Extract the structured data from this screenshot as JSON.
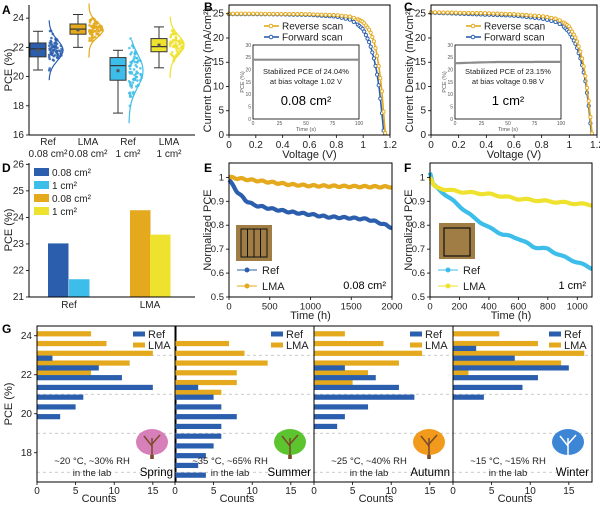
{
  "colors": {
    "ref_small": "#2b5fae",
    "ref_large": "#3dbde9",
    "lma_small": "#e4a91c",
    "lma_large": "#efe22e",
    "inset_line": "#8c8c8c"
  },
  "chart_data": [
    {
      "label": "A",
      "type": "box",
      "ylabel": "PCE (%)",
      "ylim": [
        16,
        24.9
      ],
      "yticks": [
        16,
        18,
        20,
        22,
        24
      ],
      "categories": [
        {
          "line1": "Ref",
          "line2": "0.08 cm²",
          "color": "#2b5fae",
          "min": 20.45,
          "q1": 21.35,
          "median": 21.9,
          "q3": 22.3,
          "max": 23.1,
          "mean": 21.8
        },
        {
          "line1": "LMA",
          "line2": "0.08 cm²",
          "color": "#e4a91c",
          "min": 22.0,
          "q1": 22.9,
          "median": 23.25,
          "q3": 23.6,
          "max": 24.25,
          "mean": 23.2
        },
        {
          "line1": "Ref",
          "line2": "1 cm²",
          "color": "#3dbde9",
          "min": 17.5,
          "q1": 19.75,
          "median": 20.75,
          "q3": 21.3,
          "max": 21.8,
          "mean": 20.4
        },
        {
          "line1": "LMA",
          "line2": "1 cm²",
          "color": "#efe22e",
          "min": 20.6,
          "q1": 21.7,
          "median": 22.05,
          "q3": 22.6,
          "max": 23.4,
          "mean": 22.15
        }
      ]
    },
    {
      "label": "B",
      "type": "line",
      "xlabel": "Voltage (V)",
      "ylabel": "Current Density (mA/cm²)",
      "xlim": [
        0,
        1.2
      ],
      "ylim": [
        0,
        26.8
      ],
      "xticks": [
        0,
        0.2,
        0.4,
        0.6,
        0.8,
        1,
        1.2
      ],
      "yticks": [
        0,
        5,
        10,
        15,
        20,
        25
      ],
      "series": [
        {
          "name": "Reverse scan",
          "color": "#e4a91c",
          "points": [
            [
              0,
              25.0
            ],
            [
              0.2,
              25.0
            ],
            [
              0.4,
              24.95
            ],
            [
              0.6,
              24.9
            ],
            [
              0.8,
              24.7
            ],
            [
              0.9,
              24.4
            ],
            [
              0.95,
              24.0
            ],
            [
              1.0,
              23.3
            ],
            [
              1.05,
              21.5
            ],
            [
              1.08,
              19.3
            ],
            [
              1.1,
              17.0
            ],
            [
              1.12,
              13.5
            ],
            [
              1.14,
              9
            ],
            [
              1.16,
              2
            ],
            [
              1.165,
              0
            ]
          ]
        },
        {
          "name": "Forward scan",
          "color": "#2b5fae",
          "points": [
            [
              0,
              24.9
            ],
            [
              0.2,
              24.9
            ],
            [
              0.4,
              24.85
            ],
            [
              0.6,
              24.75
            ],
            [
              0.8,
              24.4
            ],
            [
              0.9,
              23.8
            ],
            [
              0.95,
              23.0
            ],
            [
              1.0,
              21.8
            ],
            [
              1.05,
              18.8
            ],
            [
              1.08,
              15.8
            ],
            [
              1.1,
              13.2
            ],
            [
              1.12,
              9.5
            ],
            [
              1.14,
              4.5
            ],
            [
              1.15,
              1.5
            ],
            [
              1.155,
              0
            ]
          ]
        }
      ],
      "inset": {
        "xlabel": "Time (s)",
        "ylabel": "PCE (%)",
        "xlim": [
          0,
          100
        ],
        "ylim": [
          0,
          30
        ],
        "xticks": [
          0,
          25,
          50,
          75,
          100
        ],
        "yticks": [
          0,
          5,
          10,
          15,
          20,
          25,
          30
        ],
        "points": [
          [
            0,
            24.04
          ],
          [
            100,
            24.04
          ]
        ],
        "annotation": "Stabilized PCE of 24.04%",
        "annotation2": "at bias voltage 1.02 V",
        "area_label": "0.08 cm²"
      }
    },
    {
      "label": "C",
      "type": "line",
      "xlabel": "Voltage (V)",
      "ylabel": "Current Density (mA/cm²)",
      "xlim": [
        0,
        1.2
      ],
      "ylim": [
        0,
        26.8
      ],
      "xticks": [
        0,
        0.2,
        0.4,
        0.6,
        0.8,
        1,
        1.2
      ],
      "yticks": [
        0,
        5,
        10,
        15,
        20,
        25
      ],
      "series": [
        {
          "name": "Reverse scan",
          "color": "#e4a91c",
          "points": [
            [
              0,
              25.3
            ],
            [
              0.2,
              25.2
            ],
            [
              0.4,
              25.1
            ],
            [
              0.6,
              24.9
            ],
            [
              0.8,
              24.5
            ],
            [
              0.9,
              24.0
            ],
            [
              0.95,
              23.4
            ],
            [
              1.0,
              22.3
            ],
            [
              1.05,
              19.8
            ],
            [
              1.08,
              17.2
            ],
            [
              1.1,
              14.8
            ],
            [
              1.12,
              11.5
            ],
            [
              1.14,
              7
            ],
            [
              1.16,
              1.5
            ],
            [
              1.165,
              0
            ]
          ]
        },
        {
          "name": "Forward scan",
          "color": "#2b5fae",
          "points": [
            [
              0,
              25.2
            ],
            [
              0.2,
              25.0
            ],
            [
              0.4,
              24.8
            ],
            [
              0.6,
              24.6
            ],
            [
              0.8,
              24.0
            ],
            [
              0.9,
              23.3
            ],
            [
              0.95,
              22.6
            ],
            [
              1.0,
              21.2
            ],
            [
              1.05,
              18.5
            ],
            [
              1.08,
              15.8
            ],
            [
              1.1,
              13.5
            ],
            [
              1.12,
              10.5
            ],
            [
              1.14,
              6
            ],
            [
              1.155,
              1.5
            ],
            [
              1.16,
              0
            ]
          ]
        }
      ],
      "inset": {
        "xlabel": "Time (s)",
        "ylabel": "PCE (%)",
        "xlim": [
          0,
          100
        ],
        "ylim": [
          0,
          30
        ],
        "xticks": [
          0,
          25,
          50,
          75,
          100
        ],
        "yticks": [
          0,
          5,
          10,
          15,
          20,
          25,
          30
        ],
        "points": [
          [
            0,
            22.6
          ],
          [
            20,
            22.9
          ],
          [
            40,
            23.1
          ],
          [
            100,
            23.15
          ]
        ],
        "annotation": "Stabilized PCE of 23.15%",
        "annotation2": "at bias voltage 0.98 V",
        "area_label": "1 cm²"
      }
    },
    {
      "label": "D",
      "type": "bar",
      "ylabel": "PCE (%)",
      "ylim": [
        21,
        26.05
      ],
      "yticks": [
        21,
        22,
        23,
        24,
        25,
        26
      ],
      "categories": [
        "Ref",
        "LMA"
      ],
      "series": [
        {
          "name": "0.08 cm²",
          "color": "#2b5fae",
          "category": 0,
          "value": 23.02
        },
        {
          "name": "1 cm²",
          "color": "#3dbde9",
          "category": 0,
          "value": 21.67
        },
        {
          "name": "0.08 cm²",
          "color": "#e4a91c",
          "category": 1,
          "value": 24.27
        },
        {
          "name": "1 cm²",
          "color": "#efe22e",
          "category": 1,
          "value": 23.35
        }
      ]
    },
    {
      "label": "E",
      "type": "line",
      "xlabel": "Time (h)",
      "ylabel": "Normalized PCE",
      "xlim": [
        0,
        2000
      ],
      "ylim": [
        0.5,
        1.06
      ],
      "xticks": [
        0,
        500,
        1000,
        1500,
        2000
      ],
      "yticks": [
        0.5,
        0.6,
        0.7,
        0.8,
        0.9,
        1
      ],
      "area_label": "0.08 cm²",
      "series": [
        {
          "name": "Ref",
          "color": "#2b5fae",
          "points": [
            [
              0,
              0.99
            ],
            [
              100,
              0.94
            ],
            [
              200,
              0.905
            ],
            [
              300,
              0.885
            ],
            [
              500,
              0.87
            ],
            [
              750,
              0.855
            ],
            [
              1000,
              0.845
            ],
            [
              1200,
              0.835
            ],
            [
              1500,
              0.83
            ],
            [
              1700,
              0.825
            ],
            [
              1850,
              0.81
            ],
            [
              2000,
              0.79
            ]
          ]
        },
        {
          "name": "LMA",
          "color": "#e4a91c",
          "points": [
            [
              0,
              1.0
            ],
            [
              250,
              0.99
            ],
            [
              500,
              0.98
            ],
            [
              750,
              0.97
            ],
            [
              1000,
              0.965
            ],
            [
              1500,
              0.962
            ],
            [
              2000,
              0.96
            ]
          ]
        }
      ]
    },
    {
      "label": "F",
      "type": "line",
      "xlabel": "Time (h)",
      "ylabel": "Normalized PCE",
      "xlim": [
        0,
        1100
      ],
      "ylim": [
        0.5,
        1.06
      ],
      "xticks": [
        0,
        200,
        400,
        600,
        800,
        1000
      ],
      "yticks": [
        0.5,
        0.6,
        0.7,
        0.8,
        0.9,
        1
      ],
      "area_label": "1 cm²",
      "series": [
        {
          "name": "Ref",
          "color": "#3dbde9",
          "points": [
            [
              0,
              1.02
            ],
            [
              20,
              0.97
            ],
            [
              100,
              0.93
            ],
            [
              200,
              0.88
            ],
            [
              300,
              0.83
            ],
            [
              400,
              0.79
            ],
            [
              500,
              0.76
            ],
            [
              600,
              0.745
            ],
            [
              700,
              0.71
            ],
            [
              800,
              0.7
            ],
            [
              900,
              0.67
            ],
            [
              1000,
              0.645
            ],
            [
              1100,
              0.62
            ]
          ]
        },
        {
          "name": "LMA",
          "color": "#efe22e",
          "points": [
            [
              0,
              1.0
            ],
            [
              30,
              0.96
            ],
            [
              100,
              0.95
            ],
            [
              200,
              0.94
            ],
            [
              400,
              0.93
            ],
            [
              600,
              0.91
            ],
            [
              800,
              0.9
            ],
            [
              1000,
              0.89
            ],
            [
              1100,
              0.885
            ]
          ]
        }
      ]
    },
    {
      "label": "G",
      "type": "hbar",
      "xlabel": "Counts",
      "ylabel": "PCE (%)",
      "ylim": [
        16.5,
        24.5
      ],
      "yticks": [
        18,
        20,
        22,
        24
      ],
      "xlim": [
        0,
        18
      ],
      "xticks": [
        0,
        5,
        10,
        15
      ],
      "legend": [
        "Ref",
        "LMA"
      ],
      "panels": [
        {
          "season": "Spring",
          "conditions": "~20 °C, ~30% RH",
          "conditions2": "in the lab",
          "tree_color": "#d77fb8",
          "lma": [
            [
              24.1,
              7
            ],
            [
              23.6,
              9
            ],
            [
              23.1,
              15
            ],
            [
              22.6,
              12
            ],
            [
              22.1,
              7
            ]
          ],
          "ref": [
            [
              22.85,
              2
            ],
            [
              22.35,
              8
            ],
            [
              21.85,
              11
            ],
            [
              21.35,
              15
            ],
            [
              20.85,
              6
            ],
            [
              20.35,
              5
            ],
            [
              19.85,
              3
            ]
          ]
        },
        {
          "season": "Summer",
          "conditions": "~35 °C, ~65% RH",
          "conditions2": "in the lab",
          "tree_color": "#5cc42f",
          "lma": [
            [
              23.6,
              7
            ],
            [
              23.1,
              9
            ],
            [
              22.6,
              12
            ],
            [
              22.1,
              8
            ],
            [
              21.6,
              8
            ],
            [
              21.1,
              6
            ]
          ],
          "ref": [
            [
              21.35,
              3
            ],
            [
              20.85,
              5
            ],
            [
              20.35,
              6
            ],
            [
              19.85,
              8
            ],
            [
              19.35,
              6
            ],
            [
              18.85,
              6
            ],
            [
              18.35,
              5
            ],
            [
              17.85,
              4
            ],
            [
              17.35,
              3
            ],
            [
              16.85,
              4
            ]
          ]
        },
        {
          "season": "Autumn",
          "conditions": "~25 °C, ~40% RH",
          "conditions2": "in the lab",
          "tree_color": "#f29a1c",
          "lma": [
            [
              24.1,
              4
            ],
            [
              23.6,
              9
            ],
            [
              23.1,
              14
            ],
            [
              22.6,
              11
            ],
            [
              22.1,
              7
            ],
            [
              21.6,
              5
            ]
          ],
          "ref": [
            [
              22.35,
              4
            ],
            [
              21.85,
              8
            ],
            [
              21.35,
              11
            ],
            [
              20.85,
              13
            ],
            [
              20.35,
              7
            ],
            [
              19.85,
              4
            ],
            [
              19.35,
              3
            ]
          ]
        },
        {
          "season": "Winter",
          "conditions": "~15 °C, ~15% RH",
          "conditions2": "in the lab",
          "tree_color": "#3d86d6",
          "lma": [
            [
              24.1,
              6
            ],
            [
              23.6,
              11
            ],
            [
              23.1,
              17
            ],
            [
              22.6,
              14
            ],
            [
              22.1,
              2
            ]
          ],
          "ref": [
            [
              23.35,
              3
            ],
            [
              22.85,
              8
            ],
            [
              22.35,
              15
            ],
            [
              21.85,
              11
            ],
            [
              21.35,
              9
            ],
            [
              20.85,
              4
            ]
          ]
        }
      ]
    }
  ]
}
